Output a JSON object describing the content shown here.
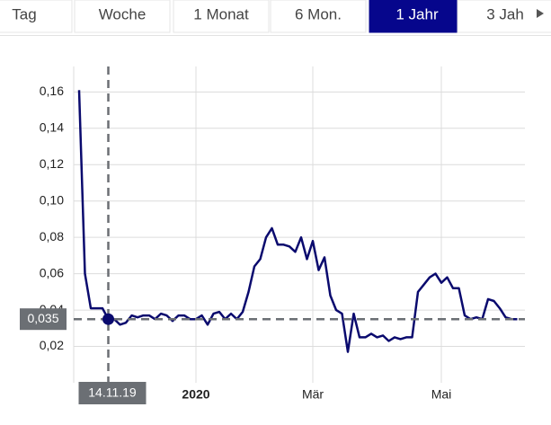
{
  "tabs": {
    "items": [
      "Tag",
      "Woche",
      "1 Monat",
      "6 Mon.",
      "1 Jahr",
      "3 Jah"
    ],
    "selected": 4
  },
  "chart_data": {
    "type": "line",
    "categories": [
      null,
      null,
      null,
      null,
      null,
      "14.11.19",
      null,
      null,
      null,
      null,
      null,
      null,
      null,
      null,
      null,
      null,
      null,
      null,
      null,
      null,
      "2020",
      null,
      null,
      null,
      null,
      null,
      null,
      null,
      null,
      null,
      null,
      null,
      null,
      null,
      null,
      null,
      null,
      null,
      null,
      null,
      "Mär",
      null,
      null,
      null,
      null,
      null,
      null,
      null,
      null,
      null,
      null,
      null,
      null,
      null,
      null,
      null,
      null,
      null,
      null,
      null,
      null,
      null,
      "Mai",
      null,
      null,
      null,
      null,
      null,
      null,
      null,
      null,
      null,
      null,
      null,
      null,
      null
    ],
    "series": [
      {
        "color": "#0a0a6e",
        "values": [
          0.161,
          0.06,
          0.041,
          0.041,
          0.041,
          0.035,
          0.035,
          0.032,
          0.033,
          0.037,
          0.036,
          0.037,
          0.037,
          0.035,
          0.038,
          0.037,
          0.034,
          0.037,
          0.037,
          0.035,
          0.035,
          0.037,
          0.032,
          0.038,
          0.039,
          0.035,
          0.038,
          0.035,
          0.039,
          0.05,
          0.064,
          0.068,
          0.08,
          0.085,
          0.076,
          0.076,
          0.075,
          0.072,
          0.08,
          0.068,
          0.078,
          0.062,
          0.069,
          0.048,
          0.04,
          0.038,
          0.017,
          0.038,
          0.025,
          0.025,
          0.027,
          0.025,
          0.026,
          0.023,
          0.025,
          0.024,
          0.025,
          0.025,
          0.05,
          0.054,
          0.058,
          0.06,
          0.055,
          0.058,
          0.052,
          0.052,
          0.037,
          0.035,
          0.036,
          0.035,
          0.046,
          0.045,
          0.041,
          0.036,
          0.035,
          0.035
        ]
      }
    ],
    "ylim": [
      0,
      0.174
    ],
    "yticks": [
      {
        "value": 0.02,
        "label": "0,02"
      },
      {
        "value": 0.04,
        "label": "0,04"
      },
      {
        "value": 0.06,
        "label": "0,06"
      },
      {
        "value": 0.08,
        "label": "0,08"
      },
      {
        "value": 0.1,
        "label": "0,10"
      },
      {
        "value": 0.12,
        "label": "0,12"
      },
      {
        "value": 0.14,
        "label": "0,14"
      },
      {
        "value": 0.16,
        "label": "0,16"
      }
    ],
    "grid": true,
    "crosshair": {
      "value": 0.035,
      "label": "0,035",
      "color": "#0a0a6e"
    }
  }
}
